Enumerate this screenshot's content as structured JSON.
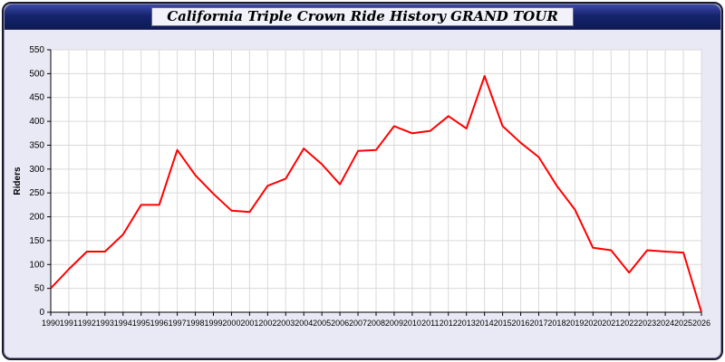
{
  "window": {
    "title": "California Triple Crown Ride History GRAND TOUR"
  },
  "chart_data": {
    "type": "line",
    "title": "California Triple Crown Ride History GRAND TOUR",
    "xlabel": "",
    "ylabel": "Riders",
    "ylim": [
      0,
      550
    ],
    "ytick_step": 50,
    "grid": true,
    "legend_position": "none",
    "line_color": "#ff0000",
    "grid_color": "#d9d9d9",
    "plot_bg": "#ffffff",
    "x": [
      1990,
      1991,
      1992,
      1993,
      1994,
      1995,
      1996,
      1997,
      1998,
      1999,
      2000,
      2001,
      2002,
      2003,
      2004,
      2005,
      2006,
      2007,
      2008,
      2009,
      2010,
      2011,
      2012,
      2013,
      2014,
      2015,
      2016,
      2017,
      2018,
      2019,
      2020,
      2021,
      2022,
      2023,
      2024,
      2025,
      2026
    ],
    "series": [
      {
        "name": "Riders",
        "values": [
          50,
          90,
          127,
          127,
          163,
          225,
          225,
          340,
          287,
          248,
          213,
          210,
          265,
          280,
          343,
          310,
          268,
          338,
          340,
          390,
          375,
          380,
          411,
          385,
          495,
          390,
          355,
          325,
          265,
          215,
          135,
          130,
          83,
          130,
          127,
          125,
          0
        ]
      }
    ]
  }
}
